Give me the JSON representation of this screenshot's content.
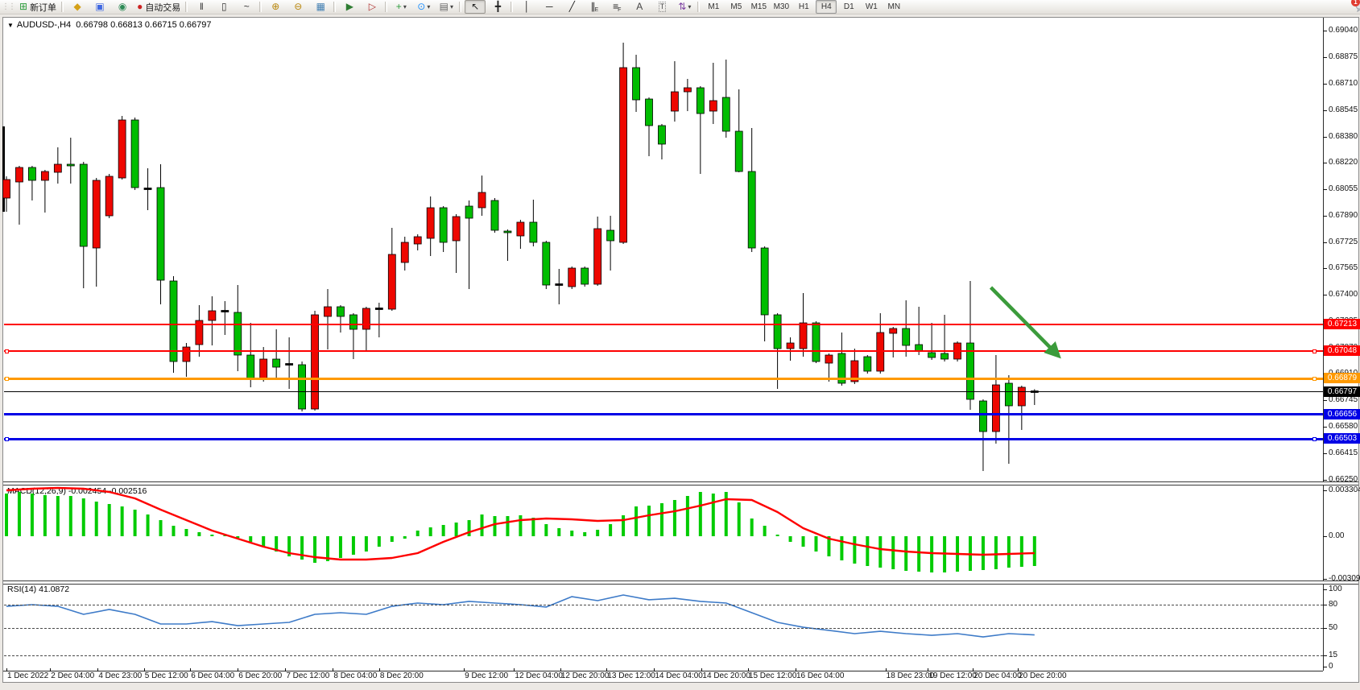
{
  "toolbar": {
    "new_order_label": "新订单",
    "auto_trading_label": "自动交易",
    "icon_buttons": [
      {
        "name": "new-order-button",
        "glyph": "⊞",
        "color": "#2e9e3e",
        "label": "new_order"
      },
      {
        "name": "sep"
      },
      {
        "name": "history-center-button",
        "glyph": "◆",
        "color": "#d4a017"
      },
      {
        "name": "market-watch-button",
        "glyph": "▣",
        "color": "#4169e1"
      },
      {
        "name": "signals-button",
        "glyph": "◉",
        "color": "#2e8b57"
      },
      {
        "name": "auto-trading-button",
        "glyph": "●",
        "color": "#cc2222",
        "label": "auto_trading"
      },
      {
        "name": "sep"
      },
      {
        "name": "bar-chart-button",
        "glyph": "‖",
        "color": "#333333"
      },
      {
        "name": "candlestick-chart-button",
        "glyph": "▯",
        "color": "#333333"
      },
      {
        "name": "line-chart-button",
        "glyph": "~",
        "color": "#333333"
      },
      {
        "name": "sep"
      },
      {
        "name": "zoom-in-button",
        "glyph": "⊕",
        "color": "#b8860b"
      },
      {
        "name": "zoom-out-button",
        "glyph": "⊖",
        "color": "#b8860b"
      },
      {
        "name": "tile-windows-button",
        "glyph": "▦",
        "color": "#4682b4"
      },
      {
        "name": "sep"
      },
      {
        "name": "auto-scroll-button",
        "glyph": "▶",
        "color": "#2e7d32"
      },
      {
        "name": "chart-shift-button",
        "glyph": "▷",
        "color": "#b03030"
      },
      {
        "name": "sep"
      },
      {
        "name": "indicators-button",
        "glyph": "+",
        "color": "#2e9e3e",
        "caret": true
      },
      {
        "name": "periods-button",
        "glyph": "⊙",
        "color": "#1e90ff",
        "caret": true
      },
      {
        "name": "templates-button",
        "glyph": "▤",
        "color": "#666666",
        "caret": true
      },
      {
        "name": "sep"
      },
      {
        "name": "cursor-button",
        "glyph": "↖",
        "color": "#222222",
        "active": true
      },
      {
        "name": "crosshair-button",
        "glyph": "╋",
        "color": "#222222"
      },
      {
        "name": "sep"
      },
      {
        "name": "vertical-line-button",
        "glyph": "│",
        "color": "#222222"
      },
      {
        "name": "horizontal-line-button",
        "glyph": "─",
        "color": "#222222"
      },
      {
        "name": "trendline-button",
        "glyph": "╱",
        "color": "#222222"
      },
      {
        "name": "channel-button",
        "glyph": "∥",
        "color": "#222222",
        "sub": "E"
      },
      {
        "name": "fibonacci-button",
        "glyph": "≡",
        "color": "#222222",
        "sub": "F"
      },
      {
        "name": "text-button",
        "glyph": "A",
        "color": "#444444"
      },
      {
        "name": "text-label-button",
        "glyph": "T",
        "color": "#444444",
        "boxed": true
      },
      {
        "name": "arrows-button",
        "glyph": "⇅",
        "color": "#7a3da0",
        "caret": true
      },
      {
        "name": "sep"
      }
    ],
    "timeframes": [
      "M1",
      "M5",
      "M15",
      "M30",
      "H1",
      "H4",
      "D1",
      "W1",
      "MN"
    ],
    "active_timeframe": "H4",
    "notification_count": "1"
  },
  "chart": {
    "symbol_period": "AUDUSD-,H4",
    "ohlc_text": "0.66798 0.66813 0.66715 0.66797",
    "price_axis_ticks": [
      "0.69040",
      "0.68875",
      "0.68710",
      "0.68545",
      "0.68380",
      "0.68220",
      "0.68055",
      "0.67890",
      "0.67725",
      "0.67565",
      "0.67400",
      "0.67235",
      "0.67070",
      "0.66910",
      "0.66745",
      "0.66580",
      "0.66415",
      "0.66250"
    ],
    "date_axis": {
      "labels": [
        "1 Dec 2022",
        "2 Dec 04:00",
        "4 Dec 23:00",
        "5 Dec 12:00",
        "6 Dec 04:00",
        "6 Dec 20:00",
        "7 Dec 12:00",
        "8 Dec 04:00",
        "8 Dec 20:00",
        "9 Dec 12:00",
        "12 Dec 04:00",
        "12 Dec 20:00",
        "13 Dec 12:00",
        "14 Dec 04:00",
        "14 Dec 20:00",
        "15 Dec 12:00",
        "16 Dec 04:00",
        "18 Dec 23:00",
        "19 Dec 12:00",
        "20 Dec 04:00",
        "20 Dec 20:00"
      ],
      "bar_index": [
        0,
        3.4,
        7.1,
        10.7,
        14.3,
        18,
        21.7,
        25.4,
        29,
        35.6,
        39.5,
        43.1,
        46.7,
        50.4,
        54.1,
        57.7,
        61.4,
        68.4,
        71.7,
        75.2,
        78.7
      ]
    }
  },
  "chart_data": {
    "type": "candlestick",
    "colors": {
      "bull_red": "#ee0700",
      "bear_green": "#00bd00",
      "doji": "#000000",
      "wick": "#000000"
    },
    "candles": [
      [
        "r",
        0.68,
        0.68135,
        0.67915,
        0.68115
      ],
      [
        "r",
        0.681,
        0.682,
        0.67835,
        0.6819
      ],
      [
        "g",
        0.6819,
        0.682,
        0.67985,
        0.6811
      ],
      [
        "r",
        0.6811,
        0.68175,
        0.6791,
        0.68165
      ],
      [
        "r",
        0.6816,
        0.68315,
        0.6809,
        0.6821
      ],
      [
        "g",
        0.6821,
        0.68375,
        0.6809,
        0.682
      ],
      [
        "g",
        0.6821,
        0.68225,
        0.6744,
        0.677
      ],
      [
        "r",
        0.6769,
        0.68125,
        0.6745,
        0.6811
      ],
      [
        "r",
        0.6789,
        0.6815,
        0.67875,
        0.68135
      ],
      [
        "r",
        0.68125,
        0.6851,
        0.68115,
        0.68485
      ],
      [
        "g",
        0.68485,
        0.685,
        0.6805,
        0.68065
      ],
      [
        "k",
        0.6806,
        0.68185,
        0.67925,
        0.68055
      ],
      [
        "g",
        0.68065,
        0.6821,
        0.6734,
        0.6749
      ],
      [
        "g",
        0.67485,
        0.67515,
        0.66915,
        0.66985
      ],
      [
        "r",
        0.66985,
        0.671,
        0.6689,
        0.67075
      ],
      [
        "r",
        0.6709,
        0.67335,
        0.67015,
        0.6724
      ],
      [
        "r",
        0.6724,
        0.6739,
        0.67085,
        0.673
      ],
      [
        "k",
        0.673,
        0.6736,
        0.6715,
        0.67295
      ],
      [
        "g",
        0.6729,
        0.6746,
        0.66925,
        0.67025
      ],
      [
        "g",
        0.67025,
        0.67225,
        0.66825,
        0.66875
      ],
      [
        "r",
        0.66875,
        0.67075,
        0.6686,
        0.67
      ],
      [
        "g",
        0.67,
        0.67185,
        0.66875,
        0.6695
      ],
      [
        "k",
        0.6697,
        0.67135,
        0.66815,
        0.66965
      ],
      [
        "g",
        0.66965,
        0.66985,
        0.66675,
        0.6669
      ],
      [
        "r",
        0.6669,
        0.673,
        0.6668,
        0.67275
      ],
      [
        "r",
        0.67265,
        0.67435,
        0.6706,
        0.67325
      ],
      [
        "g",
        0.67325,
        0.67335,
        0.67165,
        0.67265
      ],
      [
        "g",
        0.67275,
        0.67285,
        0.67,
        0.67185
      ],
      [
        "r",
        0.67185,
        0.67325,
        0.6705,
        0.67315
      ],
      [
        "k",
        0.67315,
        0.6735,
        0.67135,
        0.6731
      ],
      [
        "r",
        0.6731,
        0.67815,
        0.673,
        0.6765
      ],
      [
        "r",
        0.676,
        0.6776,
        0.6755,
        0.67725
      ],
      [
        "r",
        0.67715,
        0.67775,
        0.67675,
        0.6776
      ],
      [
        "r",
        0.6775,
        0.6801,
        0.6764,
        0.6794
      ],
      [
        "g",
        0.6794,
        0.6795,
        0.67665,
        0.67725
      ],
      [
        "r",
        0.67735,
        0.679,
        0.67535,
        0.67885
      ],
      [
        "g",
        0.6795,
        0.67985,
        0.67435,
        0.67875
      ],
      [
        "r",
        0.6794,
        0.6814,
        0.6789,
        0.68035
      ],
      [
        "g",
        0.67985,
        0.68,
        0.67785,
        0.678
      ],
      [
        "g",
        0.67795,
        0.67805,
        0.6761,
        0.67785
      ],
      [
        "r",
        0.67765,
        0.67865,
        0.67685,
        0.6785
      ],
      [
        "g",
        0.6785,
        0.6799,
        0.677,
        0.67725
      ],
      [
        "g",
        0.67725,
        0.67735,
        0.67435,
        0.6746
      ],
      [
        "k",
        0.67465,
        0.6756,
        0.6734,
        0.6746
      ],
      [
        "r",
        0.6745,
        0.67575,
        0.67435,
        0.67565
      ],
      [
        "g",
        0.67565,
        0.67575,
        0.6745,
        0.67465
      ],
      [
        "r",
        0.67465,
        0.67885,
        0.67455,
        0.6781
      ],
      [
        "g",
        0.678,
        0.6789,
        0.6755,
        0.67735
      ],
      [
        "r",
        0.67725,
        0.68965,
        0.67715,
        0.6881
      ],
      [
        "g",
        0.6881,
        0.6889,
        0.68535,
        0.6861
      ],
      [
        "g",
        0.68615,
        0.68625,
        0.6826,
        0.6845
      ],
      [
        "g",
        0.6845,
        0.6846,
        0.6824,
        0.68335
      ],
      [
        "r",
        0.6854,
        0.6885,
        0.68475,
        0.6866
      ],
      [
        "r",
        0.6866,
        0.6874,
        0.6854,
        0.68685
      ],
      [
        "g",
        0.68685,
        0.68695,
        0.6815,
        0.68525
      ],
      [
        "r",
        0.6854,
        0.6884,
        0.6846,
        0.68605
      ],
      [
        "g",
        0.68625,
        0.6886,
        0.68375,
        0.68415
      ],
      [
        "g",
        0.68415,
        0.68675,
        0.6816,
        0.68165
      ],
      [
        "g",
        0.68165,
        0.68435,
        0.67665,
        0.6769
      ],
      [
        "g",
        0.6769,
        0.677,
        0.6711,
        0.67275
      ],
      [
        "g",
        0.67275,
        0.67285,
        0.66815,
        0.67065
      ],
      [
        "r",
        0.67065,
        0.67135,
        0.6699,
        0.671
      ],
      [
        "r",
        0.67065,
        0.6741,
        0.67015,
        0.67225
      ],
      [
        "g",
        0.67225,
        0.67235,
        0.66975,
        0.66985
      ],
      [
        "r",
        0.66975,
        0.67035,
        0.6686,
        0.67025
      ],
      [
        "g",
        0.67035,
        0.67165,
        0.66835,
        0.6685
      ],
      [
        "r",
        0.6686,
        0.67065,
        0.66845,
        0.6699
      ],
      [
        "g",
        0.67015,
        0.67025,
        0.6691,
        0.66925
      ],
      [
        "r",
        0.66925,
        0.67285,
        0.6691,
        0.67165
      ],
      [
        "r",
        0.6716,
        0.672,
        0.6701,
        0.6719
      ],
      [
        "g",
        0.6719,
        0.67365,
        0.67015,
        0.67085
      ],
      [
        "g",
        0.6709,
        0.67325,
        0.67025,
        0.6705
      ],
      [
        "g",
        0.6704,
        0.67225,
        0.66995,
        0.6701
      ],
      [
        "g",
        0.67035,
        0.67275,
        0.66985,
        0.67
      ],
      [
        "r",
        0.67,
        0.6711,
        0.66985,
        0.671
      ],
      [
        "g",
        0.671,
        0.67485,
        0.66685,
        0.6675
      ],
      [
        "g",
        0.6674,
        0.6675,
        0.66305,
        0.6655
      ],
      [
        "r",
        0.6655,
        0.67025,
        0.66475,
        0.6684
      ],
      [
        "g",
        0.6685,
        0.669,
        0.6635,
        0.6671
      ],
      [
        "r",
        0.6671,
        0.66835,
        0.6656,
        0.66825
      ],
      [
        "k",
        0.66798,
        0.66813,
        0.66715,
        0.66797
      ]
    ],
    "clipped_candle_left_edge": {
      "high": 0.68445,
      "low": 0.67915
    },
    "price_lines": [
      {
        "price": 0.67213,
        "color": "#fe0000",
        "width": 2,
        "selected": false
      },
      {
        "price": 0.67048,
        "color": "#fe0000",
        "width": 2,
        "selected": true
      },
      {
        "price": 0.66879,
        "color": "#ff9900",
        "width": 3,
        "selected": true
      },
      {
        "price": 0.66797,
        "color": "#000000",
        "width": 1,
        "selected": false
      },
      {
        "price": 0.66656,
        "color": "#0000e6",
        "width": 3,
        "selected": false
      },
      {
        "price": 0.66503,
        "color": "#0000e6",
        "width": 3,
        "selected": true
      }
    ],
    "arrow_object": {
      "from_index": 76.6,
      "from_price": 0.67445,
      "to_index": 81.8,
      "to_price": 0.67025,
      "color": "#3b9b3b"
    }
  },
  "macd": {
    "label": "MACD(12,26,9)",
    "values_text": "-0.002454 -0.002516",
    "axis_ticks": [
      {
        "text": "0.003304",
        "value": 0.003304
      },
      {
        "text": "0.00",
        "value": 0
      },
      {
        "text": "-0.003098",
        "value": -0.003098
      }
    ],
    "hist_color": "#00cb00",
    "signal_color": "#fe0000",
    "histogram": [
      0.003074,
      0.00319,
      0.003074,
      0.002958,
      0.0029,
      0.0029,
      0.002726,
      0.002494,
      0.00232,
      0.002146,
      0.001914,
      0.001566,
      0.00116,
      0.000754,
      0.000522,
      0.00029,
      0.000116,
      5.8e-05,
      -0.000116,
      -0.000406,
      -0.000754,
      -0.001102,
      -0.00145,
      -0.001682,
      -0.001914,
      -0.001798,
      -0.001566,
      -0.001334,
      -0.001102,
      -0.000754,
      -0.000406,
      -0.000174,
      0.000406,
      0.000638,
      0.000812,
      0.000986,
      0.00116,
      0.001566,
      0.00145,
      0.00145,
      0.001508,
      0.001334,
      0.00087,
      0.00058,
      0.000406,
      0.00029,
      0.000464,
      0.00087,
      0.001508,
      0.002146,
      0.002204,
      0.002378,
      0.00261,
      0.0029,
      0.00319,
      0.003074,
      0.00319,
      0.002436,
      0.001276,
      0.000754,
      0.000116,
      -0.000406,
      -0.000754,
      -0.001102,
      -0.00145,
      -0.00174,
      -0.001972,
      -0.002146,
      -0.002262,
      -0.002378,
      -0.002494,
      -0.002552,
      -0.00261,
      -0.00261,
      -0.002552,
      -0.002494,
      -0.002436,
      -0.002378,
      -0.002262,
      -0.002204,
      -0.002146
    ],
    "signal_every2": [
      0.003306,
      0.003422,
      0.00348,
      0.003422,
      0.00319,
      0.002726,
      0.001914,
      0.00116,
      0.000406,
      -0.000174,
      -0.000754,
      -0.001218,
      -0.001508,
      -0.001682,
      -0.001682,
      -0.001566,
      -0.001218,
      -0.000406,
      0.00029,
      0.00087,
      0.00116,
      0.001276,
      0.001218,
      0.001102,
      0.00116,
      0.001508,
      0.001798,
      0.002204,
      0.002668,
      0.00261,
      0.00174,
      0.00058,
      -0.000174,
      -0.00058,
      -0.000928,
      -0.001102,
      -0.001218,
      -0.001276,
      -0.001334,
      -0.001276,
      -0.001218
    ]
  },
  "rsi": {
    "label": "RSI(14)",
    "value_text": "41.0872",
    "axis_ticks": [
      100,
      80,
      50,
      15,
      0
    ],
    "dashed_levels": [
      80,
      50,
      15
    ],
    "line_color": "#3e7bc8",
    "line_every2": [
      78.1,
      80.2,
      78.1,
      67.7,
      74.0,
      67.7,
      55.2,
      55.2,
      58.3,
      53.1,
      55.2,
      57.3,
      67.7,
      69.8,
      67.7,
      78.1,
      82.3,
      80.2,
      84.4,
      82.3,
      80.2,
      77.1,
      90.6,
      85.4,
      92.7,
      86.5,
      88.5,
      84.4,
      82.3,
      69.8,
      57.3,
      51.0,
      46.9,
      42.7,
      45.8,
      42.7,
      40.6,
      42.7,
      38.5,
      42.7,
      41.1
    ]
  }
}
